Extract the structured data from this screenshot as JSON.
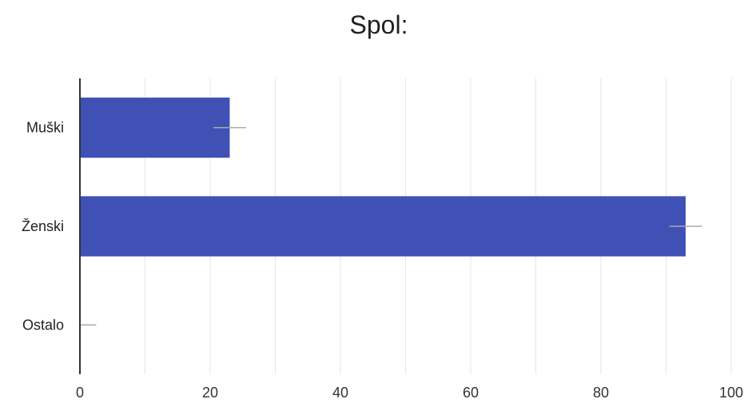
{
  "chart_data": {
    "type": "bar",
    "orientation": "horizontal",
    "title": "Spol:",
    "xlabel": "",
    "ylabel": "",
    "categories": [
      "Muški",
      "Ženski",
      "Ostalo"
    ],
    "values": [
      23,
      93,
      0
    ],
    "error_bars": [
      2.5,
      2.5,
      2.5
    ],
    "xlim": [
      0,
      100
    ],
    "xticks": [
      0,
      20,
      40,
      60,
      80,
      100
    ],
    "grid": true,
    "legend": "none",
    "colors": {
      "bar": "#3f51b5",
      "grid": "#e6e6e6",
      "axis": "#333333",
      "error_bar": "#aaaaaa"
    }
  }
}
